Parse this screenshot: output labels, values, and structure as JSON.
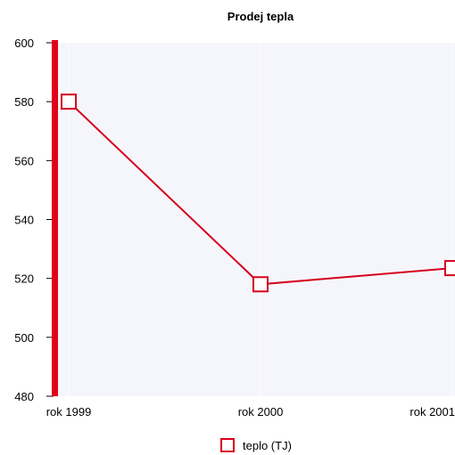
{
  "chart_data": {
    "type": "line",
    "title": "Prodej tepla",
    "xlabel": "",
    "ylabel": "",
    "categories": [
      "rok 1999",
      "rok 2000",
      "rok 2001"
    ],
    "series": [
      {
        "name": "teplo (TJ)",
        "values": [
          580,
          518,
          523.5
        ]
      }
    ],
    "ylim": [
      480,
      600
    ],
    "yticks": [
      480,
      500,
      520,
      540,
      560,
      580,
      600
    ],
    "legend_position": "bottom-center",
    "grid": false,
    "colors": {
      "series": "#d6001c",
      "axis": "#e2001a",
      "plot_background": "#f5f6fb",
      "marker_fill": "#ffffff"
    }
  }
}
